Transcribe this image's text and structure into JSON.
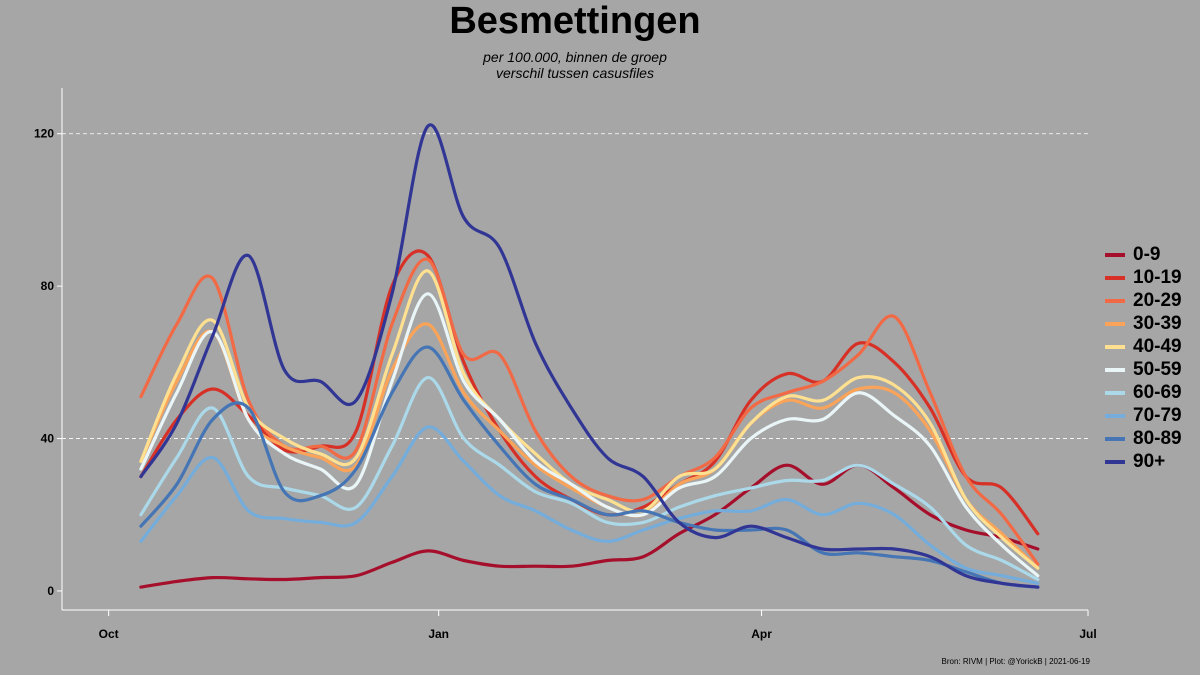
{
  "title": "Besmettingen",
  "subtitle_line1": "per 100.000, binnen de groep",
  "subtitle_line2": "verschil tussen casusfiles",
  "caption": "Bron: RIVM | Plot: @YorickB  |  2021-06-19",
  "chart_data": {
    "type": "line",
    "title": "Besmettingen",
    "subtitle": "per 100.000, binnen de groep verschil tussen casusfiles",
    "xlabel": "",
    "ylabel": "",
    "x_ticks": [
      "Oct",
      "Jan",
      "Apr",
      "Jul"
    ],
    "x_tick_dates": [
      "2020-10-01",
      "2021-01-01",
      "2021-04-01",
      "2021-07-01"
    ],
    "xlim": [
      "2020-09-18",
      "2021-07-01"
    ],
    "y_ticks": [
      0,
      40,
      80,
      120
    ],
    "ylim": [
      -5,
      132
    ],
    "grid": "horizontal dashed at 40 and 120",
    "legend_position": "right",
    "x": [
      "2020-10-10",
      "2020-10-20",
      "2020-10-30",
      "2020-11-09",
      "2020-11-19",
      "2020-11-29",
      "2020-12-09",
      "2020-12-19",
      "2020-12-29",
      "2021-01-08",
      "2021-01-18",
      "2021-01-28",
      "2021-02-07",
      "2021-02-17",
      "2021-02-27",
      "2021-03-09",
      "2021-03-19",
      "2021-03-29",
      "2021-04-08",
      "2021-04-18",
      "2021-04-28",
      "2021-05-08",
      "2021-05-18",
      "2021-05-28",
      "2021-06-07",
      "2021-06-17"
    ],
    "series": [
      {
        "name": "0-9",
        "color": "#a50f2b",
        "values": [
          1,
          2.5,
          3.5,
          3.2,
          3,
          3.5,
          4,
          7.5,
          10.5,
          8,
          6.5,
          6.5,
          6.5,
          8,
          9,
          15,
          20,
          27,
          33,
          28,
          33,
          27,
          20,
          16,
          14,
          11
        ]
      },
      {
        "name": "10-19",
        "color": "#d73127",
        "values": [
          30,
          45,
          53,
          46,
          37,
          38,
          42,
          80,
          88,
          60,
          42,
          30,
          24,
          20,
          22,
          28,
          34,
          50,
          57,
          55,
          65,
          60,
          48,
          30,
          27,
          15
        ]
      },
      {
        "name": "20-29",
        "color": "#f16a45",
        "values": [
          51,
          70,
          82,
          50,
          38,
          38,
          37,
          70,
          87,
          62,
          62,
          42,
          30,
          25,
          24,
          30,
          35,
          48,
          52,
          55,
          62,
          72,
          52,
          30,
          20,
          7
        ]
      },
      {
        "name": "30-39",
        "color": "#fba459",
        "values": [
          34,
          55,
          68,
          45,
          38,
          35,
          33,
          58,
          70,
          52,
          42,
          33,
          27,
          22,
          20,
          28,
          32,
          44,
          50,
          48,
          53,
          52,
          42,
          24,
          15,
          6
        ]
      },
      {
        "name": "40-49",
        "color": "#fee090",
        "values": [
          34,
          57,
          71,
          48,
          40,
          36,
          35,
          62,
          84,
          57,
          45,
          36,
          28,
          24,
          21,
          30,
          32,
          44,
          51,
          50,
          56,
          54,
          44,
          24,
          14,
          6
        ]
      },
      {
        "name": "50-59",
        "color": "#eaf5f7",
        "values": [
          32,
          52,
          68,
          45,
          36,
          32,
          28,
          55,
          78,
          55,
          45,
          34,
          28,
          22,
          20,
          27,
          30,
          40,
          45,
          45,
          52,
          46,
          38,
          22,
          12,
          4
        ]
      },
      {
        "name": "60-69",
        "color": "#abd9e9",
        "values": [
          20,
          35,
          48,
          30,
          27,
          25,
          22,
          38,
          56,
          40,
          33,
          26,
          23,
          18,
          18,
          22,
          25,
          27,
          29,
          29,
          33,
          28,
          22,
          12,
          8,
          3
        ]
      },
      {
        "name": "70-79",
        "color": "#74addb",
        "values": [
          13,
          25,
          35,
          21,
          19,
          18,
          18,
          30,
          43,
          34,
          25,
          21,
          16,
          13,
          16,
          19,
          21,
          21,
          24,
          20,
          23,
          20,
          12,
          6,
          4,
          2
        ]
      },
      {
        "name": "80-89",
        "color": "#4575b4",
        "values": [
          17,
          28,
          45,
          48,
          26,
          25,
          32,
          52,
          64,
          50,
          38,
          28,
          24,
          20,
          21,
          18,
          16,
          16,
          16,
          10,
          10,
          9,
          8,
          5,
          2,
          1
        ]
      },
      {
        "name": "90+",
        "color": "#313695",
        "values": [
          30,
          44,
          67,
          88,
          58,
          55,
          50,
          78,
          122,
          98,
          90,
          65,
          48,
          35,
          30,
          18,
          14,
          17,
          14,
          11,
          11,
          11,
          9,
          4,
          2,
          1
        ]
      }
    ]
  }
}
